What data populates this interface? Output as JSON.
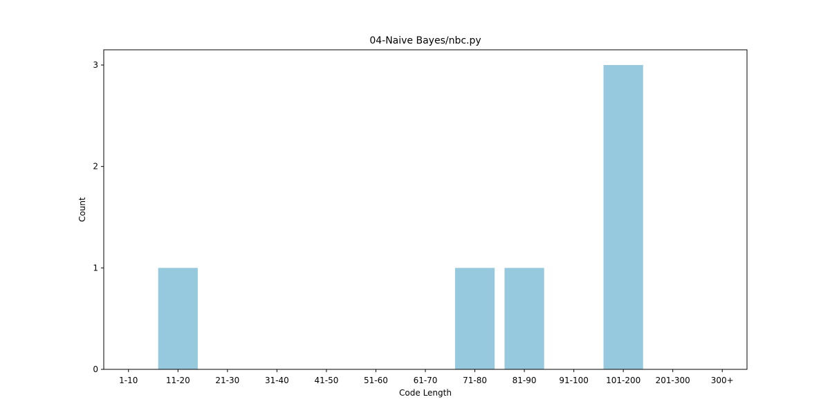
{
  "chart_data": {
    "type": "bar",
    "title": "04-Naive Bayes/nbc.py",
    "xlabel": "Code Length",
    "ylabel": "Count",
    "categories": [
      "1-10",
      "11-20",
      "21-30",
      "31-40",
      "41-50",
      "51-60",
      "61-70",
      "71-80",
      "81-90",
      "91-100",
      "101-200",
      "201-300",
      "300+"
    ],
    "values": [
      0,
      1,
      0,
      0,
      0,
      0,
      0,
      1,
      1,
      0,
      3,
      0,
      0
    ],
    "ylim": [
      0,
      3.15
    ],
    "yticks": [
      0,
      1,
      2,
      3
    ],
    "bar_color": "#96c9dd",
    "grid": false,
    "legend": "none"
  }
}
